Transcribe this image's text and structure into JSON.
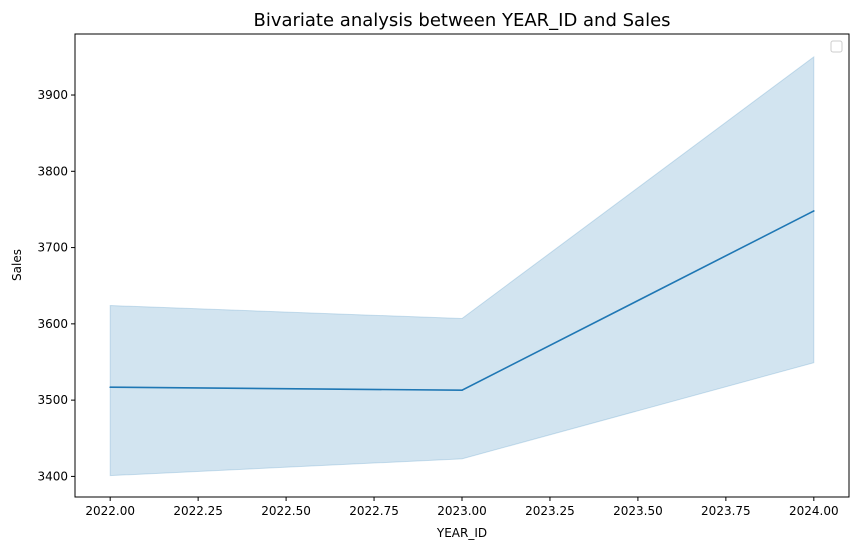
{
  "chart_data": {
    "type": "line",
    "title": "Bivariate analysis between YEAR_ID and Sales",
    "xlabel": "YEAR_ID",
    "ylabel": "Sales",
    "xlim": [
      2021.9,
      2024.1
    ],
    "ylim": [
      3373,
      3980
    ],
    "x_ticks": [
      2022.0,
      2022.25,
      2022.5,
      2022.75,
      2023.0,
      2023.25,
      2023.5,
      2023.75,
      2024.0
    ],
    "x_tick_labels": [
      "2022.00",
      "2022.25",
      "2022.50",
      "2022.75",
      "2023.00",
      "2023.25",
      "2023.50",
      "2023.75",
      "2024.00"
    ],
    "y_ticks": [
      3400,
      3500,
      3600,
      3700,
      3800,
      3900
    ],
    "y_tick_labels": [
      "3400",
      "3500",
      "3600",
      "3700",
      "3800",
      "3900"
    ],
    "grid": false,
    "legend": "top-right",
    "series": [
      {
        "x": [
          2022,
          2023,
          2024
        ],
        "values": [
          3517,
          3513,
          3748
        ],
        "ci_lower": [
          3401,
          3423,
          3549
        ],
        "ci_upper": [
          3624,
          3607,
          3950
        ],
        "color": "#1f77b4"
      }
    ]
  }
}
